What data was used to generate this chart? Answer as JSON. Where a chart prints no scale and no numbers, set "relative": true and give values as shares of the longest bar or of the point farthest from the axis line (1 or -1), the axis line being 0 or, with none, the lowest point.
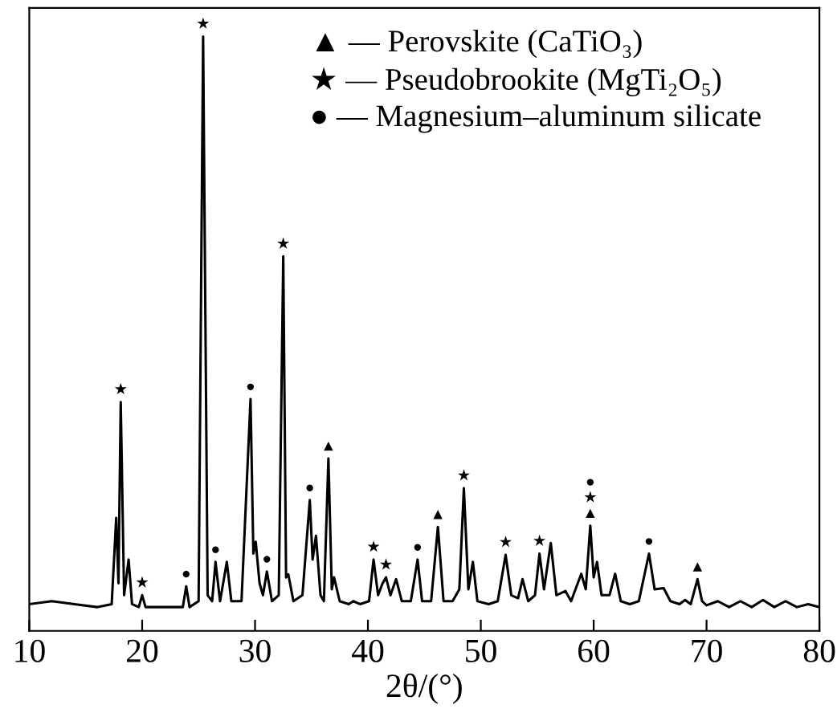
{
  "chart_data": {
    "type": "line",
    "relative": true,
    "xlabel": "2θ/(°)",
    "xlim": [
      10,
      80
    ],
    "xticks": [
      10,
      20,
      30,
      40,
      50,
      60,
      70,
      80
    ],
    "grid": false,
    "legend": false,
    "marker": "none",
    "line_style": "solid",
    "series": [
      {
        "color": "#000000",
        "x": [
          10,
          12,
          14,
          16,
          17.3,
          17.7,
          17.9,
          18.1,
          18.4,
          18.8,
          19.1,
          19.7,
          20.0,
          20.3,
          22,
          23.6,
          23.9,
          24.2,
          25.0,
          25.4,
          25.8,
          26.2,
          26.5,
          26.9,
          27.5,
          27.9,
          28.8,
          29.6,
          29.85,
          30.06,
          30.4,
          30.7,
          31.05,
          31.5,
          32.1,
          32.5,
          32.75,
          32.95,
          33.4,
          34.2,
          34.85,
          35.1,
          35.4,
          35.8,
          36.1,
          36.5,
          36.8,
          37.0,
          37.5,
          38.3,
          38.7,
          39.3,
          40.1,
          40.5,
          40.9,
          41.3,
          41.6,
          42.0,
          42.5,
          43.0,
          43.8,
          44.4,
          44.8,
          45.6,
          46.2,
          46.7,
          47.5,
          48.1,
          48.5,
          48.9,
          49.3,
          49.7,
          50.7,
          51.5,
          52.2,
          52.7,
          53.3,
          53.7,
          54.2,
          54.8,
          55.2,
          55.6,
          56.2,
          56.7,
          57.5,
          58.0,
          58.9,
          59.3,
          59.7,
          60.0,
          60.3,
          60.7,
          61.4,
          61.9,
          62.4,
          63.2,
          64.0,
          64.9,
          65.4,
          66.2,
          66.8,
          67.6,
          68.1,
          68.6,
          69.2,
          69.6,
          70.0,
          71,
          72,
          73,
          74,
          75,
          76,
          77,
          78,
          79,
          80
        ],
        "values": [
          0.045,
          0.05,
          0.045,
          0.04,
          0.045,
          0.19,
          0.08,
          0.385,
          0.06,
          0.12,
          0.045,
          0.04,
          0.06,
          0.04,
          0.04,
          0.04,
          0.075,
          0.04,
          0.05,
          1.0,
          0.06,
          0.05,
          0.116,
          0.05,
          0.116,
          0.05,
          0.05,
          0.39,
          0.13,
          0.15,
          0.08,
          0.06,
          0.1,
          0.05,
          0.06,
          0.63,
          0.09,
          0.095,
          0.05,
          0.06,
          0.22,
          0.12,
          0.16,
          0.06,
          0.05,
          0.29,
          0.07,
          0.09,
          0.05,
          0.045,
          0.05,
          0.045,
          0.05,
          0.12,
          0.06,
          0.08,
          0.09,
          0.06,
          0.087,
          0.05,
          0.05,
          0.12,
          0.05,
          0.05,
          0.175,
          0.05,
          0.05,
          0.07,
          0.24,
          0.07,
          0.116,
          0.05,
          0.045,
          0.05,
          0.128,
          0.06,
          0.055,
          0.087,
          0.05,
          0.06,
          0.13,
          0.07,
          0.148,
          0.06,
          0.067,
          0.05,
          0.096,
          0.07,
          0.177,
          0.09,
          0.116,
          0.06,
          0.06,
          0.096,
          0.05,
          0.045,
          0.05,
          0.13,
          0.07,
          0.072,
          0.05,
          0.045,
          0.052,
          0.045,
          0.087,
          0.05,
          0.043,
          0.05,
          0.04,
          0.05,
          0.04,
          0.052,
          0.04,
          0.05,
          0.04,
          0.045,
          0.04
        ]
      }
    ],
    "annotations": [
      "▲ — Perovskite (CaTiO₃)",
      "★ — Pseudobrookite (MgTi₂O₅)",
      "● — Magnesium–aluminum silicate",
      {
        "text": "★",
        "x": 18.1,
        "y": 0.385
      },
      {
        "text": "★",
        "x": 20.0,
        "y": 0.06
      },
      {
        "text": "●",
        "x": 23.9,
        "y": 0.075
      },
      {
        "text": "★",
        "x": 25.4,
        "y": 1.0
      },
      {
        "text": "●",
        "x": 26.5,
        "y": 0.116
      },
      {
        "text": "●",
        "x": 29.6,
        "y": 0.39
      },
      {
        "text": "●",
        "x": 31.05,
        "y": 0.1
      },
      {
        "text": "★",
        "x": 32.5,
        "y": 0.63
      },
      {
        "text": "●",
        "x": 34.85,
        "y": 0.22
      },
      {
        "text": "▲",
        "x": 36.5,
        "y": 0.29
      },
      {
        "text": "★",
        "x": 40.5,
        "y": 0.12
      },
      {
        "text": "★",
        "x": 41.6,
        "y": 0.09
      },
      {
        "text": "●",
        "x": 44.4,
        "y": 0.12
      },
      {
        "text": "▲",
        "x": 46.2,
        "y": 0.175
      },
      {
        "text": "★",
        "x": 48.5,
        "y": 0.24
      },
      {
        "text": "★",
        "x": 52.2,
        "y": 0.128
      },
      {
        "text": "★",
        "x": 55.2,
        "y": 0.13
      },
      {
        "text": "▲",
        "x": 59.7,
        "y": 0.177
      },
      {
        "text": "★",
        "x": 59.7,
        "y": 0.177
      },
      {
        "text": "●",
        "x": 59.7,
        "y": 0.177
      },
      {
        "text": "●",
        "x": 64.9,
        "y": 0.13
      },
      {
        "text": "▲",
        "x": 69.2,
        "y": 0.087
      }
    ]
  }
}
